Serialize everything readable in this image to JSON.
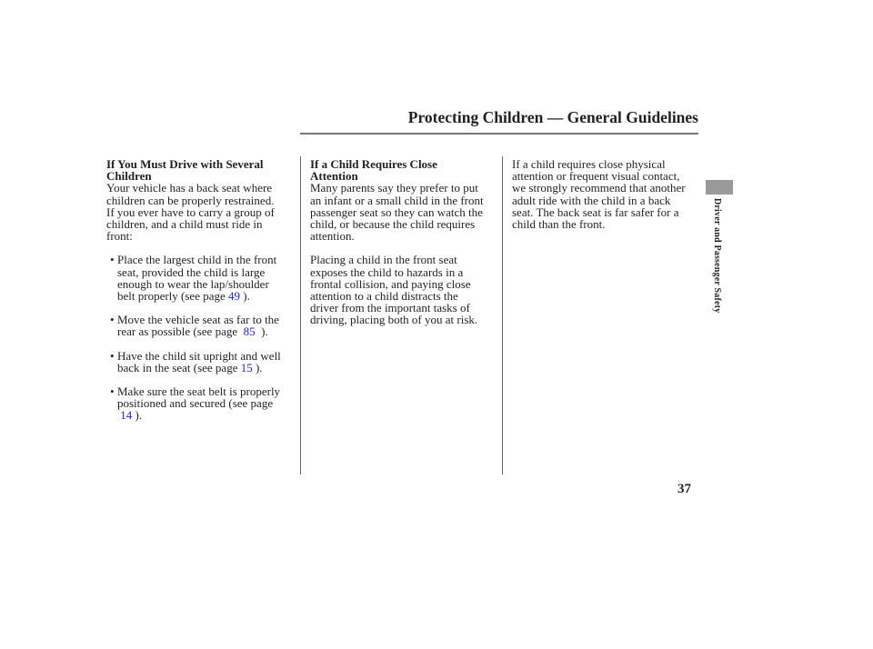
{
  "header": {
    "title": "Protecting Children — General Guidelines"
  },
  "side_tab": {
    "label": "Driver and Passenger Safety",
    "color": "#999999"
  },
  "page_number": "37",
  "col1": {
    "heading": [
      "If You Must Drive with Several",
      "Children"
    ],
    "intro": [
      "Your vehicle has a back seat where",
      "children can be properly restrained.",
      "If you ever have to carry a group of",
      "children, and a child must ride in",
      "front:"
    ],
    "bullets": [
      {
        "lines": [
          "Place the largest child in the front",
          "seat, provided the child is large",
          "enough to wear the lap/shoulder"
        ],
        "last_pre": "belt properly (see page ",
        "link": "49",
        "last_post": " )."
      },
      {
        "lines": [
          "Move the vehicle seat as far to the"
        ],
        "last_pre": "rear as possible (see page  ",
        "link": "85",
        "last_post": "  )."
      },
      {
        "lines": [
          "Have the child sit upright and well"
        ],
        "last_pre": "back in the seat (see page ",
        "link": "15",
        "last_post": " )."
      },
      {
        "lines": [
          "Make sure the seat belt is properly",
          "positioned and secured (see page"
        ],
        "last_pre": " ",
        "link": "14",
        "last_post": " )."
      }
    ]
  },
  "col2": {
    "heading": [
      "If a Child Requires Close",
      "Attention"
    ],
    "p1": [
      "Many parents say they prefer to put",
      "an infant or a small child in the front",
      "passenger seat so they can watch the",
      "child, or because the child requires",
      "attention."
    ],
    "p2": [
      "Placing a child in the front seat",
      "exposes the child to hazards in a",
      "frontal collision, and paying close",
      "attention to a child distracts the",
      "driver from the important tasks of",
      "driving, placing both of you at risk."
    ]
  },
  "col3": {
    "p1": [
      "If a child requires close physical",
      "attention or frequent visual contact,",
      "we strongly recommend that another",
      "adult ride with the child in a back",
      "seat. The back seat is far safer for a",
      "child than the front."
    ]
  },
  "colors": {
    "link": "#1a1aff",
    "text": "#231f20"
  }
}
